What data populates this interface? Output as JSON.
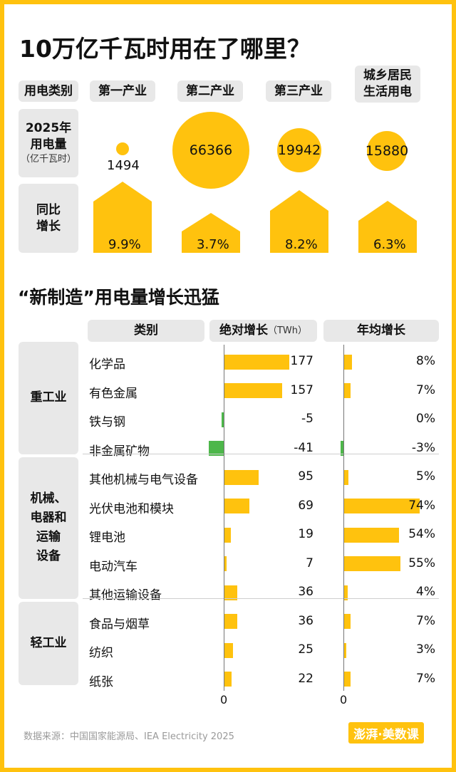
{
  "title": "10万亿千瓦时用在了哪里？",
  "section1": {
    "category_header": "用电类别",
    "row1_label_line1": "2025年",
    "row1_label_line2": "用电量",
    "row1_unit": "（亿千瓦时）",
    "row2_label_line1": "同比",
    "row2_label_line2": "增长",
    "columns": [
      {
        "name_line1": "第一产业",
        "name_line2": "",
        "consumption": "1494",
        "growth": "9.9%"
      },
      {
        "name_line1": "第二产业",
        "name_line2": "",
        "consumption": "66366",
        "growth": "3.7%"
      },
      {
        "name_line1": "第三产业",
        "name_line2": "",
        "consumption": "19942",
        "growth": "8.2%"
      },
      {
        "name_line1": "城乡居民",
        "name_line2": "生活用电",
        "consumption": "15880",
        "growth": "6.3%"
      }
    ]
  },
  "section2": {
    "title": "“新制造”用电量增长迅猛",
    "header_category": "类别",
    "header_absolute": "绝对增长",
    "header_absolute_unit": "（TWh）",
    "header_annual": "年均增长",
    "axis_zero": "0"
  },
  "chart_data": {
    "type": "bar",
    "title": "“新制造”用电量增长迅猛",
    "groups": [
      {
        "name_lines": [
          "重工业"
        ],
        "items": [
          {
            "name": "化学品",
            "abs": 177,
            "abs_label": "177",
            "pct": 8,
            "pct_label": "8%"
          },
          {
            "name": "有色金属",
            "abs": 157,
            "abs_label": "157",
            "pct": 7,
            "pct_label": "7%"
          },
          {
            "name": "铁与钢",
            "abs": -5,
            "abs_label": "-5",
            "pct": 0,
            "pct_label": "0%"
          },
          {
            "name": "非金属矿物",
            "abs": -41,
            "abs_label": "-41",
            "pct": -3,
            "pct_label": "-3%"
          }
        ]
      },
      {
        "name_lines": [
          "机械、",
          "电器和",
          "运输",
          "设备"
        ],
        "items": [
          {
            "name": "其他机械与电气设备",
            "abs": 95,
            "abs_label": "95",
            "pct": 5,
            "pct_label": "5%"
          },
          {
            "name": "光伏电池和模块",
            "abs": 69,
            "abs_label": "69",
            "pct": 74,
            "pct_label": "74%"
          },
          {
            "name": "锂电池",
            "abs": 19,
            "abs_label": "19",
            "pct": 54,
            "pct_label": "54%"
          },
          {
            "name": "电动汽车",
            "abs": 7,
            "abs_label": "7",
            "pct": 55,
            "pct_label": "55%"
          },
          {
            "name": "其他运输设备",
            "abs": 36,
            "abs_label": "36",
            "pct": 4,
            "pct_label": "4%"
          }
        ]
      },
      {
        "name_lines": [
          "轻工业"
        ],
        "items": [
          {
            "name": "食品与烟草",
            "abs": 36,
            "abs_label": "36",
            "pct": 7,
            "pct_label": "7%"
          },
          {
            "name": "纺织",
            "abs": 25,
            "abs_label": "25",
            "pct": 3,
            "pct_label": "3%"
          },
          {
            "name": "纸张",
            "abs": 22,
            "abs_label": "22",
            "pct": 7,
            "pct_label": "7%"
          }
        ]
      }
    ],
    "colors": {
      "positive": "#FFC20E",
      "negative": "#4DB74A"
    }
  },
  "source": "数据来源：中国国家能源局、IEA Electricity 2025",
  "logo": "澎湃·美数课",
  "colors": {
    "accent": "#FFC20E",
    "panel": "#E8E8E8"
  }
}
